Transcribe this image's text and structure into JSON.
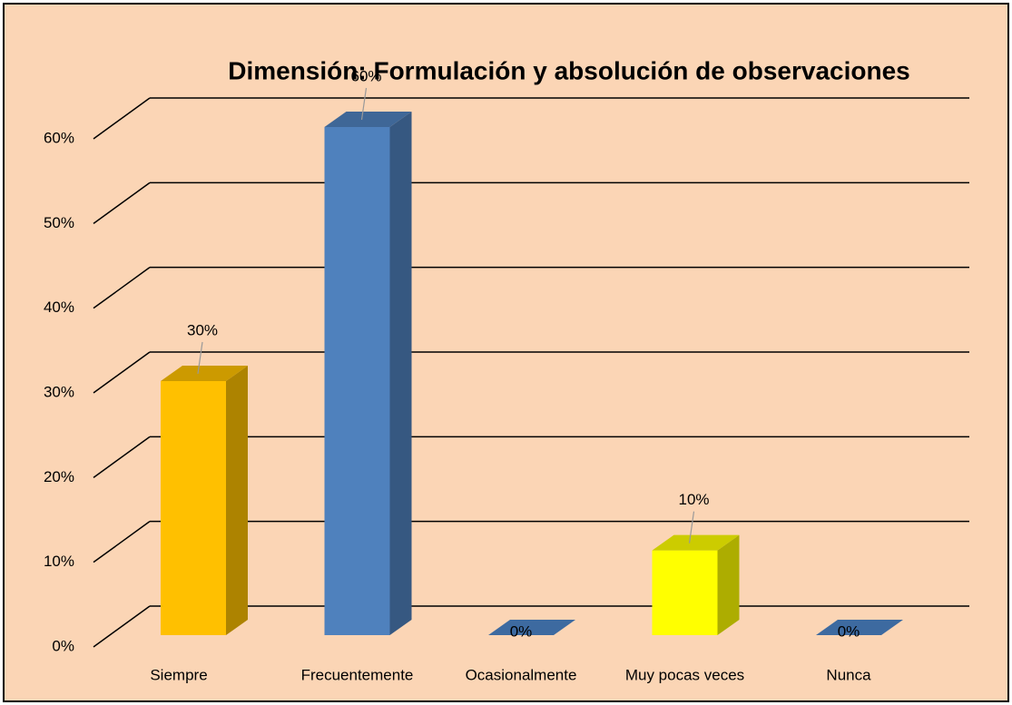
{
  "chart_data": {
    "type": "bar3d",
    "title": "Dimensión: Formulación y absolución de observaciones",
    "categories": [
      "Siempre",
      "Frecuentemente",
      "Ocasionalmente",
      "Muy pocas veces",
      "Nunca"
    ],
    "values": [
      30,
      60,
      0,
      10,
      0
    ],
    "value_labels": [
      "30%",
      "60%",
      "0%",
      "10%",
      "0%"
    ],
    "colors": [
      "#ffc000",
      "#4f81bd",
      "#4f81bd",
      "#ffff00",
      "#4f81bd"
    ],
    "ylim": [
      0,
      60
    ],
    "yticks": [
      {
        "value": 0,
        "label": "0%"
      },
      {
        "value": 10,
        "label": "10%"
      },
      {
        "value": 20,
        "label": "20%"
      },
      {
        "value": 30,
        "label": "30%"
      },
      {
        "value": 40,
        "label": "40%"
      },
      {
        "value": 50,
        "label": "50%"
      },
      {
        "value": 60,
        "label": "60%"
      }
    ],
    "grid": true,
    "background": "#fbd5b5"
  }
}
